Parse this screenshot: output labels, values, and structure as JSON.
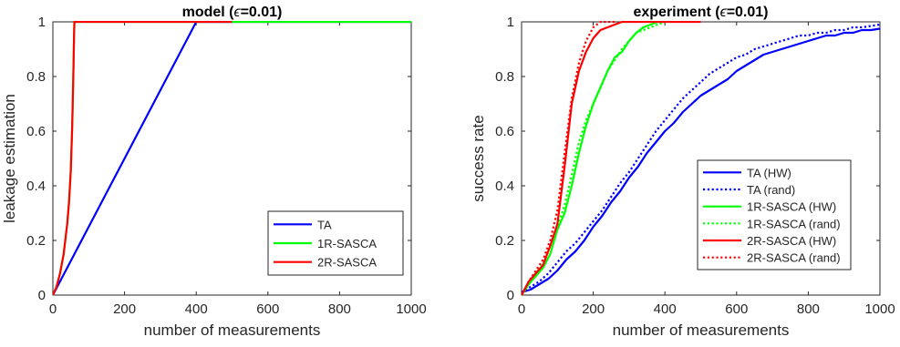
{
  "chart_data": [
    {
      "type": "line",
      "title_prefix": "model (",
      "title_symbol": "ϵ",
      "title_suffix": "=0.01)",
      "xlabel": "number of measurements",
      "ylabel": "leakage estimation",
      "xlim": [
        0,
        1000
      ],
      "ylim": [
        0,
        1
      ],
      "xticks": [
        "0",
        "200",
        "400",
        "600",
        "800",
        "1000"
      ],
      "yticks": [
        "0",
        "0.2",
        "0.4",
        "0.6",
        "0.8",
        "1"
      ],
      "grid": false,
      "legend_position": "bottom-right",
      "series": [
        {
          "name": "TA",
          "color": "#0000ff",
          "dash": "solid",
          "x": [
            0,
            400,
            1000
          ],
          "y": [
            0,
            1,
            1
          ]
        },
        {
          "name": "1R-SASCA",
          "color": "#00ff00",
          "dash": "solid",
          "x": [
            0,
            10,
            20,
            30,
            40,
            45,
            50,
            54,
            57,
            59,
            60,
            1000
          ],
          "y": [
            0,
            0.03,
            0.08,
            0.15,
            0.26,
            0.34,
            0.46,
            0.62,
            0.8,
            0.95,
            1,
            1
          ]
        },
        {
          "name": "2R-SASCA",
          "color": "#ff0000",
          "dash": "solid",
          "x": [
            0,
            10,
            20,
            30,
            40,
            45,
            50,
            54,
            57,
            59,
            60,
            500
          ],
          "y": [
            0,
            0.03,
            0.08,
            0.15,
            0.26,
            0.34,
            0.46,
            0.62,
            0.8,
            0.95,
            1,
            1
          ]
        }
      ]
    },
    {
      "type": "line",
      "title_prefix": "experiment (",
      "title_symbol": "ϵ",
      "title_suffix": "=0.01)",
      "xlabel": "number of measurements",
      "ylabel": "success rate",
      "xlim": [
        0,
        1000
      ],
      "ylim": [
        0,
        1
      ],
      "xticks": [
        "0",
        "200",
        "400",
        "600",
        "800",
        "1000"
      ],
      "yticks": [
        "0",
        "0.2",
        "0.4",
        "0.6",
        "0.8",
        "1"
      ],
      "grid": false,
      "legend_position": "bottom-right",
      "series": [
        {
          "name": "TA (HW)",
          "color": "#0000ff",
          "dash": "solid",
          "x": [
            0,
            25,
            50,
            75,
            100,
            125,
            150,
            175,
            200,
            225,
            250,
            275,
            300,
            325,
            350,
            375,
            400,
            425,
            450,
            475,
            500,
            525,
            550,
            575,
            600,
            625,
            650,
            675,
            700,
            725,
            750,
            775,
            800,
            825,
            850,
            875,
            900,
            925,
            950,
            975,
            1000
          ],
          "y": [
            0.01,
            0.02,
            0.04,
            0.06,
            0.09,
            0.13,
            0.16,
            0.2,
            0.25,
            0.29,
            0.34,
            0.38,
            0.43,
            0.47,
            0.52,
            0.56,
            0.6,
            0.63,
            0.67,
            0.7,
            0.73,
            0.75,
            0.77,
            0.79,
            0.82,
            0.84,
            0.86,
            0.88,
            0.89,
            0.9,
            0.91,
            0.92,
            0.93,
            0.94,
            0.95,
            0.95,
            0.96,
            0.96,
            0.97,
            0.97,
            0.975
          ]
        },
        {
          "name": "TA (rand)",
          "color": "#0000ff",
          "dash": "dotted",
          "x": [
            0,
            25,
            50,
            75,
            100,
            125,
            150,
            175,
            200,
            225,
            250,
            275,
            300,
            325,
            350,
            375,
            400,
            425,
            450,
            475,
            500,
            525,
            550,
            575,
            600,
            625,
            650,
            675,
            700,
            725,
            750,
            775,
            800,
            825,
            850,
            875,
            900,
            925,
            950,
            975,
            1000
          ],
          "y": [
            0.01,
            0.03,
            0.05,
            0.08,
            0.12,
            0.16,
            0.19,
            0.23,
            0.27,
            0.31,
            0.36,
            0.41,
            0.45,
            0.5,
            0.55,
            0.6,
            0.64,
            0.68,
            0.72,
            0.75,
            0.78,
            0.81,
            0.83,
            0.85,
            0.87,
            0.88,
            0.9,
            0.91,
            0.92,
            0.93,
            0.94,
            0.95,
            0.95,
            0.96,
            0.96,
            0.97,
            0.97,
            0.98,
            0.98,
            0.985,
            0.99
          ]
        },
        {
          "name": "1R-SASCA (HW)",
          "color": "#00ff00",
          "dash": "solid",
          "x": [
            0,
            20,
            40,
            60,
            80,
            100,
            120,
            140,
            160,
            180,
            200,
            220,
            240,
            260,
            280,
            300,
            320,
            340,
            360,
            380,
            400
          ],
          "y": [
            0,
            0.04,
            0.07,
            0.1,
            0.15,
            0.24,
            0.3,
            0.4,
            0.52,
            0.62,
            0.7,
            0.76,
            0.82,
            0.87,
            0.89,
            0.93,
            0.96,
            0.98,
            0.99,
            1,
            1
          ]
        },
        {
          "name": "1R-SASCA (rand)",
          "color": "#00ff00",
          "dash": "dotted",
          "x": [
            0,
            20,
            40,
            60,
            80,
            100,
            120,
            140,
            160,
            180,
            200,
            220,
            240,
            260,
            280,
            300,
            320,
            340,
            360,
            380,
            400
          ],
          "y": [
            0,
            0.04,
            0.08,
            0.12,
            0.18,
            0.25,
            0.33,
            0.44,
            0.56,
            0.64,
            0.7,
            0.76,
            0.82,
            0.86,
            0.9,
            0.93,
            0.96,
            0.97,
            0.98,
            0.99,
            1
          ]
        },
        {
          "name": "2R-SASCA (HW)",
          "color": "#ff0000",
          "dash": "solid",
          "x": [
            0,
            20,
            40,
            60,
            80,
            100,
            120,
            140,
            160,
            180,
            200,
            220,
            240,
            260,
            280,
            300,
            500
          ],
          "y": [
            0,
            0.05,
            0.08,
            0.11,
            0.18,
            0.26,
            0.47,
            0.7,
            0.82,
            0.89,
            0.94,
            0.97,
            0.98,
            0.99,
            1,
            1,
            1
          ]
        },
        {
          "name": "2R-SASCA (rand)",
          "color": "#ff0000",
          "dash": "dotted",
          "x": [
            0,
            20,
            40,
            60,
            80,
            100,
            120,
            140,
            160,
            180,
            200,
            220,
            240,
            260
          ],
          "y": [
            0,
            0.05,
            0.09,
            0.13,
            0.2,
            0.31,
            0.52,
            0.72,
            0.85,
            0.93,
            0.98,
            1,
            1,
            1
          ]
        }
      ]
    }
  ]
}
